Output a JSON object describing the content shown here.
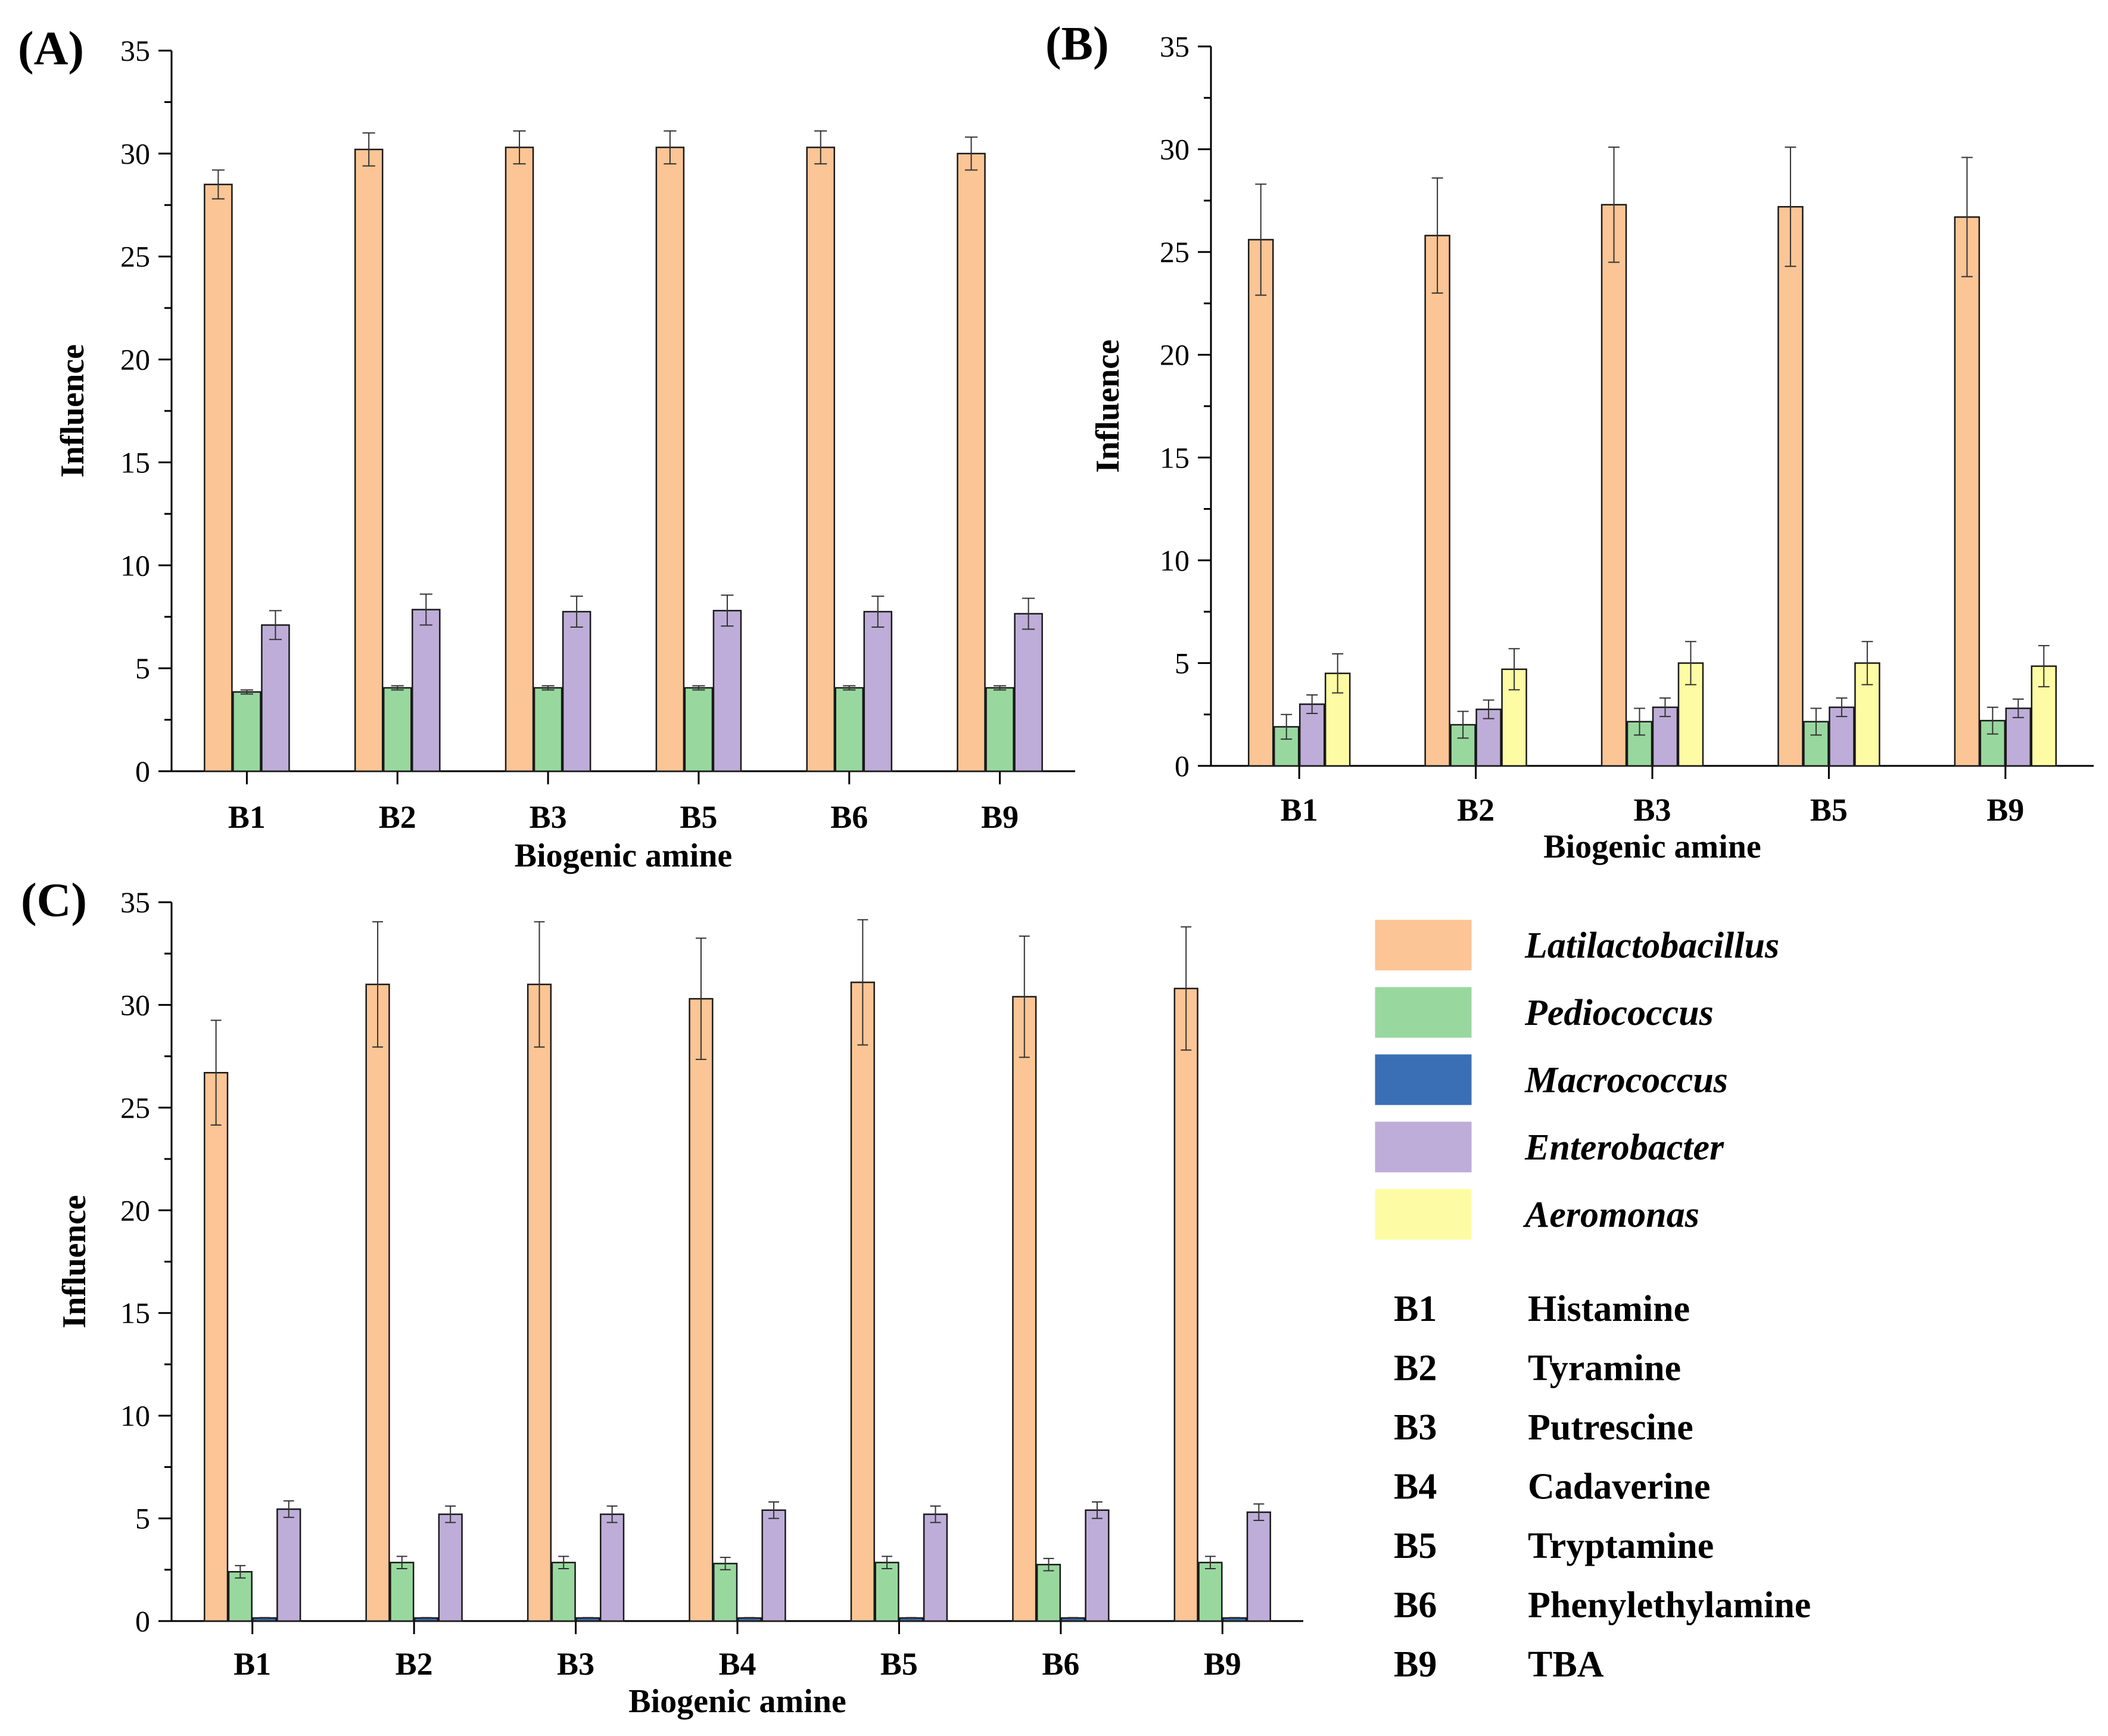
{
  "colors": {
    "Latilactobacillus": "#fbc595",
    "Pediococcus": "#98d89e",
    "Macrococcus": "#3a6fb5",
    "Enterobacter": "#beadd8",
    "Aeromonas": "#fdfca4"
  },
  "chart_data": [
    {
      "type": "bar",
      "panel_label": "(A)",
      "xlabel": "Biogenic amine",
      "ylabel": "Influence",
      "ylim": [
        0,
        35
      ],
      "yticks": [
        "0",
        "5",
        "10",
        "15",
        "20",
        "25",
        "30",
        "35"
      ],
      "categories": [
        "B1",
        "B2",
        "B3",
        "B5",
        "B6",
        "B9"
      ],
      "series": [
        {
          "name": "Latilactobacillus",
          "values": [
            28.5,
            30.2,
            30.3,
            30.3,
            30.3,
            30.0
          ],
          "errors": [
            0.7,
            0.8,
            0.8,
            0.8,
            0.8,
            0.8
          ]
        },
        {
          "name": "Pediococcus",
          "values": [
            3.85,
            4.05,
            4.05,
            4.05,
            4.05,
            4.05
          ],
          "errors": [
            0.1,
            0.1,
            0.1,
            0.1,
            0.1,
            0.1
          ]
        },
        {
          "name": "Enterobacter",
          "values": [
            7.1,
            7.85,
            7.75,
            7.8,
            7.75,
            7.65
          ],
          "errors": [
            0.7,
            0.75,
            0.75,
            0.75,
            0.75,
            0.75
          ]
        }
      ]
    },
    {
      "type": "bar",
      "panel_label": "(B)",
      "xlabel": "Biogenic amine",
      "ylabel": "Influence",
      "ylim": [
        0,
        35
      ],
      "yticks": [
        "0",
        "5",
        "10",
        "15",
        "20",
        "25",
        "30",
        "35"
      ],
      "categories": [
        "B1",
        "B2",
        "B3",
        "B5",
        "B9"
      ],
      "series": [
        {
          "name": "Latilactobacillus",
          "values": [
            25.6,
            25.8,
            27.3,
            27.2,
            26.7
          ],
          "errors": [
            2.7,
            2.8,
            2.8,
            2.9,
            2.9
          ]
        },
        {
          "name": "Pediococcus",
          "values": [
            1.9,
            2.0,
            2.15,
            2.15,
            2.2
          ],
          "errors": [
            0.6,
            0.65,
            0.65,
            0.65,
            0.65
          ]
        },
        {
          "name": "Enterobacter",
          "values": [
            3.0,
            2.75,
            2.85,
            2.85,
            2.8
          ],
          "errors": [
            0.45,
            0.45,
            0.45,
            0.45,
            0.45
          ]
        },
        {
          "name": "Aeromonas",
          "values": [
            4.5,
            4.7,
            5.0,
            5.0,
            4.85
          ],
          "errors": [
            0.95,
            1.0,
            1.05,
            1.05,
            1.0
          ]
        }
      ]
    },
    {
      "type": "bar",
      "panel_label": "(C)",
      "xlabel": "Biogenic amine",
      "ylabel": "Influence",
      "ylim": [
        0,
        35
      ],
      "yticks": [
        "0",
        "5",
        "10",
        "15",
        "20",
        "25",
        "30",
        "35"
      ],
      "categories": [
        "B1",
        "B2",
        "B3",
        "B4",
        "B5",
        "B6",
        "B9"
      ],
      "series": [
        {
          "name": "Latilactobacillus",
          "values": [
            26.7,
            31.0,
            31.0,
            30.3,
            31.1,
            30.4,
            30.8
          ],
          "errors": [
            2.55,
            3.05,
            3.05,
            2.95,
            3.05,
            2.95,
            3.0
          ]
        },
        {
          "name": "Pediococcus",
          "values": [
            2.4,
            2.85,
            2.85,
            2.8,
            2.85,
            2.75,
            2.85
          ],
          "errors": [
            0.3,
            0.3,
            0.3,
            0.3,
            0.3,
            0.3,
            0.3
          ]
        },
        {
          "name": "Macrococcus",
          "values": [
            0.15,
            0.15,
            0.15,
            0.15,
            0.15,
            0.15,
            0.15
          ],
          "errors": [
            0.02,
            0.02,
            0.02,
            0.02,
            0.02,
            0.02,
            0.02
          ]
        },
        {
          "name": "Enterobacter",
          "values": [
            5.45,
            5.2,
            5.2,
            5.4,
            5.2,
            5.4,
            5.3
          ],
          "errors": [
            0.4,
            0.4,
            0.4,
            0.4,
            0.4,
            0.4,
            0.4
          ]
        }
      ]
    }
  ],
  "legend": {
    "items": [
      {
        "name": "Latilactobacillus",
        "label": "Latilactobacillus"
      },
      {
        "name": "Pediococcus",
        "label": "Pediococcus"
      },
      {
        "name": "Macrococcus",
        "label": "Macrococcus"
      },
      {
        "name": "Enterobacter",
        "label": "Enterobacter"
      },
      {
        "name": "Aeromonas",
        "label": "Aeromonas"
      }
    ]
  },
  "abbreviations": [
    {
      "code": "B1",
      "name": "Histamine"
    },
    {
      "code": "B2",
      "name": "Tyramine"
    },
    {
      "code": "B3",
      "name": "Putrescine"
    },
    {
      "code": "B4",
      "name": "Cadaverine"
    },
    {
      "code": "B5",
      "name": "Tryptamine"
    },
    {
      "code": "B6",
      "name": "Phenylethylamine"
    },
    {
      "code": "B9",
      "name": "TBA"
    }
  ]
}
